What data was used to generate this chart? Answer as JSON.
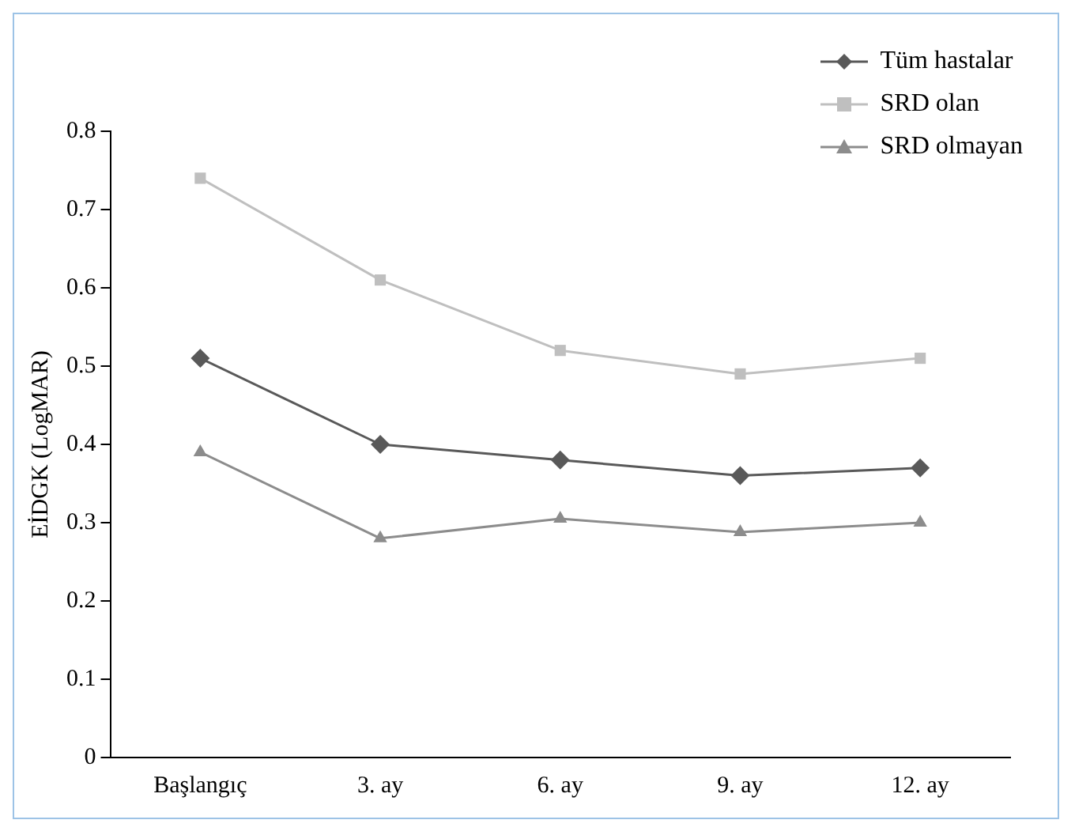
{
  "chart_data": {
    "type": "line",
    "ylabel": "EİDGK (LogMAR)",
    "categories": [
      "Başlangıç",
      "3. ay",
      "6. ay",
      "9. ay",
      "12. ay"
    ],
    "series": [
      {
        "name": "Tüm hastalar",
        "color": "#595959",
        "marker": "diamond",
        "values": [
          0.51,
          0.4,
          0.38,
          0.36,
          0.37
        ]
      },
      {
        "name": "SRD olan",
        "color": "#bfbfbf",
        "marker": "square",
        "values": [
          0.74,
          0.61,
          0.52,
          0.49,
          0.51
        ]
      },
      {
        "name": "SRD olmayan",
        "color": "#8c8c8c",
        "marker": "triangle",
        "values": [
          0.39,
          0.28,
          0.305,
          0.288,
          0.3
        ]
      }
    ],
    "ylim": [
      0,
      0.8
    ],
    "yticks": [
      0,
      0.1,
      0.2,
      0.3,
      0.4,
      0.5,
      0.6,
      0.7,
      0.8
    ],
    "grid": false,
    "legend": "top right",
    "line_style": "solid"
  }
}
